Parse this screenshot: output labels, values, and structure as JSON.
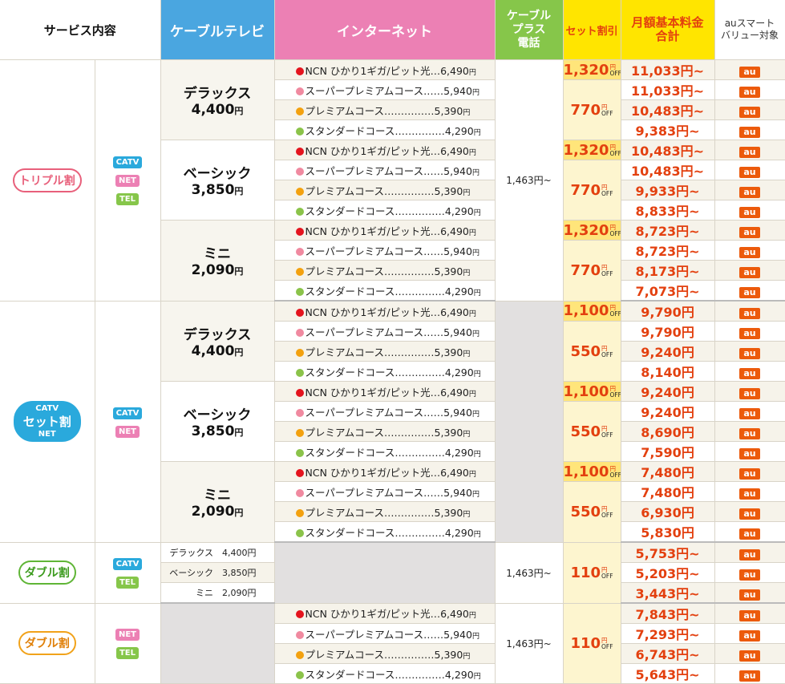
{
  "header": {
    "service": "サービス内容",
    "catv": "ケーブルテレビ",
    "internet": "インターネット",
    "tel": "ケーブル\nプラス\n電話",
    "discount": "セット割引",
    "total": "月額基本料金\n合計",
    "au": "auスマート\nバリュー対象"
  },
  "net_options": [
    {
      "label": "NCN ひかり1ギガ/ピット光…",
      "price": "6,490",
      "color": "#e4141e"
    },
    {
      "label": "スーパープレミアムコース……",
      "price": "5,940",
      "color": "#f08aa0"
    },
    {
      "label": "プレミアムコース……………",
      "price": "5,390",
      "color": "#f3a10f"
    },
    {
      "label": "スタンダードコース……………",
      "price": "4,290",
      "color": "#8bc34a"
    }
  ],
  "yen": "円",
  "off": "OFF",
  "au_tag": "au",
  "tel_price": "1,463円~",
  "groups": [
    {
      "badge": "トリプル割",
      "icons": [
        "CATV",
        "NET",
        "TEL"
      ],
      "plans": [
        {
          "name": "デラックス",
          "price": "4,400",
          "disc_top": "1,320",
          "disc_rest": "770",
          "totals": [
            "11,033円~",
            "11,033円~",
            "10,483円~",
            "9,383円~"
          ]
        },
        {
          "name": "ベーシック",
          "price": "3,850",
          "disc_top": "1,320",
          "disc_rest": "770",
          "totals": [
            "10,483円~",
            "10,483円~",
            "9,933円~",
            "8,833円~"
          ]
        },
        {
          "name": "ミニ",
          "price": "2,090",
          "disc_top": "1,320",
          "disc_rest": "770",
          "totals": [
            "8,723円~",
            "8,723円~",
            "8,173円~",
            "7,073円~"
          ]
        }
      ]
    },
    {
      "badge": "セット割",
      "badge_top": "CATV",
      "badge_bottom": "NET",
      "icons": [
        "CATV",
        "NET"
      ],
      "plans": [
        {
          "name": "デラックス",
          "price": "4,400",
          "disc_top": "1,100",
          "disc_rest": "550",
          "totals": [
            "9,790円",
            "9,790円",
            "9,240円",
            "8,140円"
          ]
        },
        {
          "name": "ベーシック",
          "price": "3,850",
          "disc_top": "1,100",
          "disc_rest": "550",
          "totals": [
            "9,240円",
            "9,240円",
            "8,690円",
            "7,590円"
          ]
        },
        {
          "name": "ミニ",
          "price": "2,090",
          "disc_top": "1,100",
          "disc_rest": "550",
          "totals": [
            "7,480円",
            "7,480円",
            "6,930円",
            "5,830円"
          ]
        }
      ]
    },
    {
      "badge": "ダブル割",
      "icons": [
        "CATV",
        "TEL"
      ],
      "rows": [
        {
          "plan": "デラックス　4,400円",
          "total": "5,753円~"
        },
        {
          "plan": "ベーシック　3,850円",
          "total": "5,203円~"
        },
        {
          "plan": "ミニ　2,090円",
          "total": "3,443円~"
        }
      ],
      "disc": "110"
    },
    {
      "badge": "ダブル割",
      "icons": [
        "NET",
        "TEL"
      ],
      "totals": [
        "7,843円~",
        "7,293円~",
        "6,743円~",
        "5,643円~"
      ],
      "disc": "110"
    }
  ]
}
